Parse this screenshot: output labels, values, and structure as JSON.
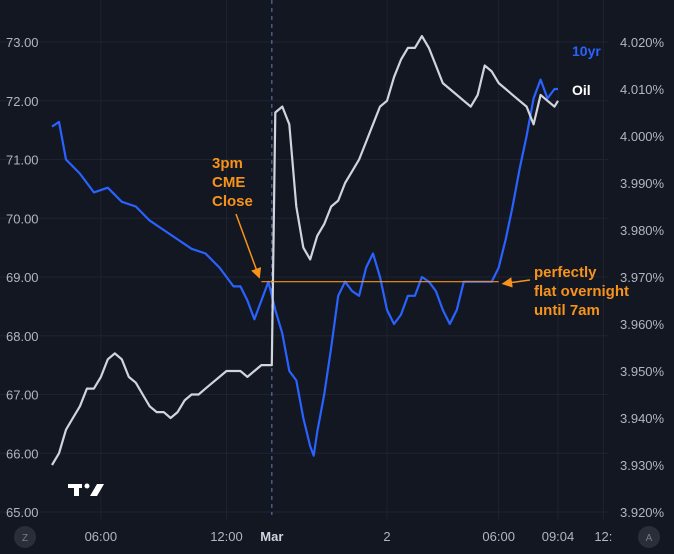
{
  "chart_data": {
    "type": "line",
    "x_ticks": [
      "06:00",
      "12:00",
      "Mar",
      "2",
      "06:00",
      "09:04",
      "12:"
    ],
    "y_left_ticks": [
      "73.00",
      "72.00",
      "71.00",
      "70.00",
      "69.00",
      "68.00",
      "67.00",
      "66.00",
      "65.00"
    ],
    "y_right_ticks": [
      "4.020%",
      "4.010%",
      "4.000%",
      "3.990%",
      "3.980%",
      "3.970%",
      "3.960%",
      "3.950%",
      "3.940%",
      "3.930%",
      "3.920%"
    ],
    "left_range": [
      65.0,
      73.0
    ],
    "right_range": [
      3.92,
      4.02
    ],
    "grid": true,
    "series": [
      {
        "name": "10yr",
        "axis": "right",
        "color": "#2962ff",
        "points": [
          [
            0,
            4.002
          ],
          [
            2,
            4.003
          ],
          [
            4,
            3.995
          ],
          [
            8,
            3.992
          ],
          [
            12,
            3.988
          ],
          [
            16,
            3.989
          ],
          [
            20,
            3.986
          ],
          [
            24,
            3.985
          ],
          [
            28,
            3.982
          ],
          [
            32,
            3.98
          ],
          [
            36,
            3.978
          ],
          [
            40,
            3.976
          ],
          [
            44,
            3.975
          ],
          [
            48,
            3.972
          ],
          [
            52,
            3.968
          ],
          [
            54,
            3.968
          ],
          [
            56,
            3.965
          ],
          [
            58,
            3.961
          ],
          [
            60,
            3.965
          ],
          [
            62,
            3.969
          ],
          [
            64,
            3.963
          ],
          [
            66,
            3.958
          ],
          [
            68,
            3.95
          ],
          [
            70,
            3.948
          ],
          [
            72,
            3.94
          ],
          [
            74,
            3.934
          ],
          [
            75,
            3.932
          ],
          [
            76,
            3.937
          ],
          [
            78,
            3.945
          ],
          [
            80,
            3.955
          ],
          [
            82,
            3.966
          ],
          [
            84,
            3.969
          ],
          [
            86,
            3.967
          ],
          [
            88,
            3.966
          ],
          [
            90,
            3.972
          ],
          [
            92,
            3.975
          ],
          [
            94,
            3.97
          ],
          [
            96,
            3.963
          ],
          [
            98,
            3.96
          ],
          [
            100,
            3.962
          ],
          [
            102,
            3.966
          ],
          [
            104,
            3.966
          ],
          [
            106,
            3.97
          ],
          [
            108,
            3.969
          ],
          [
            110,
            3.967
          ],
          [
            112,
            3.963
          ],
          [
            114,
            3.96
          ],
          [
            116,
            3.963
          ],
          [
            118,
            3.969
          ],
          [
            120,
            3.969
          ],
          [
            122,
            3.969
          ],
          [
            124,
            3.969
          ],
          [
            126,
            3.969
          ],
          [
            128,
            3.972
          ],
          [
            130,
            3.978
          ],
          [
            132,
            3.985
          ],
          [
            134,
            3.993
          ],
          [
            136,
            4.0
          ],
          [
            138,
            4.008
          ],
          [
            140,
            4.012
          ],
          [
            142,
            4.008
          ],
          [
            144,
            4.01
          ],
          [
            145,
            4.01
          ]
        ]
      },
      {
        "name": "Oil",
        "axis": "left",
        "color": "#d1d4dc",
        "points": [
          [
            0,
            65.8
          ],
          [
            2,
            66.0
          ],
          [
            4,
            66.4
          ],
          [
            6,
            66.6
          ],
          [
            8,
            66.8
          ],
          [
            10,
            67.1
          ],
          [
            12,
            67.1
          ],
          [
            14,
            67.3
          ],
          [
            16,
            67.6
          ],
          [
            18,
            67.7
          ],
          [
            20,
            67.6
          ],
          [
            22,
            67.3
          ],
          [
            24,
            67.2
          ],
          [
            26,
            67.0
          ],
          [
            28,
            66.8
          ],
          [
            30,
            66.7
          ],
          [
            32,
            66.7
          ],
          [
            34,
            66.6
          ],
          [
            36,
            66.7
          ],
          [
            38,
            66.9
          ],
          [
            40,
            67.0
          ],
          [
            42,
            67.0
          ],
          [
            44,
            67.1
          ],
          [
            46,
            67.2
          ],
          [
            48,
            67.3
          ],
          [
            50,
            67.4
          ],
          [
            52,
            67.4
          ],
          [
            54,
            67.4
          ],
          [
            56,
            67.3
          ],
          [
            58,
            67.4
          ],
          [
            60,
            67.5
          ],
          [
            62,
            67.5
          ],
          [
            63,
            67.5
          ],
          [
            64,
            71.8
          ],
          [
            66,
            71.9
          ],
          [
            68,
            71.6
          ],
          [
            70,
            70.2
          ],
          [
            72,
            69.5
          ],
          [
            74,
            69.3
          ],
          [
            76,
            69.7
          ],
          [
            78,
            69.9
          ],
          [
            80,
            70.2
          ],
          [
            82,
            70.3
          ],
          [
            84,
            70.6
          ],
          [
            86,
            70.8
          ],
          [
            88,
            71.0
          ],
          [
            90,
            71.3
          ],
          [
            92,
            71.6
          ],
          [
            94,
            71.9
          ],
          [
            96,
            72.0
          ],
          [
            98,
            72.4
          ],
          [
            100,
            72.7
          ],
          [
            102,
            72.9
          ],
          [
            104,
            72.9
          ],
          [
            106,
            73.1
          ],
          [
            108,
            72.9
          ],
          [
            110,
            72.6
          ],
          [
            112,
            72.3
          ],
          [
            114,
            72.2
          ],
          [
            116,
            72.1
          ],
          [
            118,
            72.0
          ],
          [
            120,
            71.9
          ],
          [
            122,
            72.1
          ],
          [
            124,
            72.6
          ],
          [
            126,
            72.5
          ],
          [
            128,
            72.3
          ],
          [
            130,
            72.2
          ],
          [
            132,
            72.1
          ],
          [
            134,
            72.0
          ],
          [
            136,
            71.9
          ],
          [
            138,
            71.6
          ],
          [
            140,
            72.1
          ],
          [
            142,
            72.0
          ],
          [
            144,
            71.9
          ],
          [
            145,
            72.0
          ]
        ]
      }
    ],
    "flat_line": {
      "from": 60,
      "to": 128,
      "value": 3.969,
      "color": "#f7931a"
    },
    "annotations": [
      {
        "lines": [
          "3pm",
          "CME",
          "Close"
        ],
        "target": [
          60,
          3.969
        ]
      },
      {
        "lines": [
          "perfectly",
          "flat overnight",
          "until 7am"
        ],
        "target": [
          128,
          3.969
        ]
      }
    ],
    "session_divider_x": 63
  },
  "corner": {
    "left": "Z",
    "right": "A",
    "logo": "TV"
  }
}
